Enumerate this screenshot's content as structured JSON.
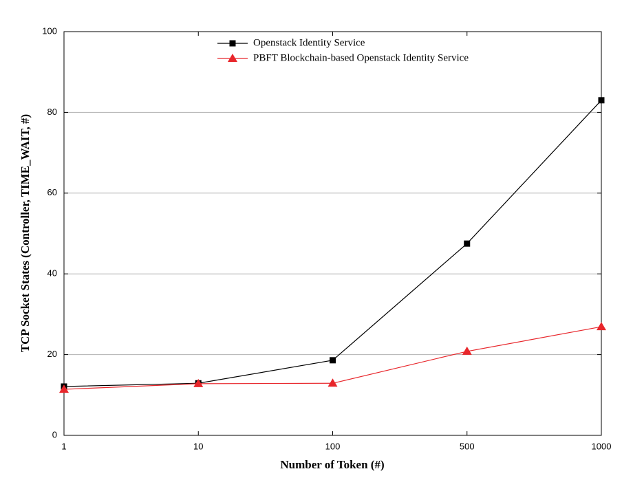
{
  "chart_data": {
    "type": "line",
    "x_label": "Number of Token (#)",
    "y_label": "TCP Socket States (Controller, TIME_WAIT, #)",
    "categories": [
      "1",
      "10",
      "100",
      "500",
      "1000"
    ],
    "series": [
      {
        "name": "Openstack Identity Service",
        "color": "#000000",
        "marker": "square",
        "values": [
          12.1,
          12.9,
          18.6,
          47.5,
          83.0
        ]
      },
      {
        "name": "PBFT Blockchain-based Openstack Identity Service",
        "color": "#e8262b",
        "marker": "triangle",
        "values": [
          11.4,
          12.8,
          12.9,
          20.8,
          26.9
        ]
      }
    ],
    "ylim": [
      0,
      100
    ],
    "yticks": [
      0,
      20,
      40,
      60,
      80,
      100
    ],
    "grid": true
  }
}
